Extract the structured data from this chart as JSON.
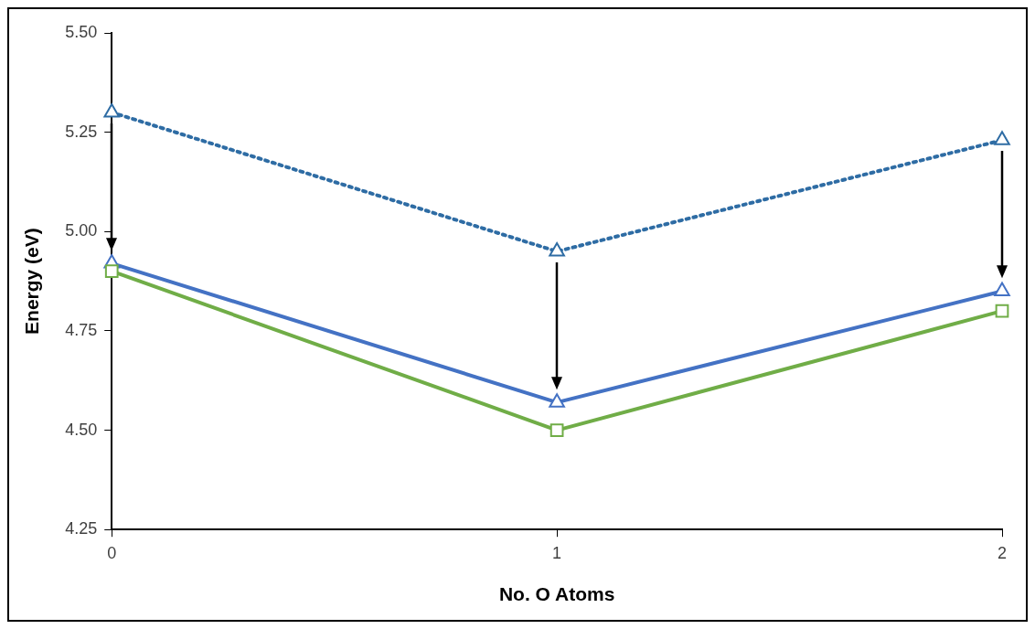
{
  "chart_data": {
    "type": "line",
    "xlabel": "No. O Atoms",
    "ylabel": "Energy (eV)",
    "x": [
      0,
      1,
      2
    ],
    "xlim": [
      0,
      2
    ],
    "xticks": [
      0,
      1,
      2
    ],
    "ylim": [
      4.25,
      5.5
    ],
    "yticks": [
      {
        "value": 4.25,
        "label": "4.25"
      },
      {
        "value": 4.5,
        "label": "4.50"
      },
      {
        "value": 4.75,
        "label": "4.75"
      },
      {
        "value": 5.0,
        "label": "5.00"
      },
      {
        "value": 5.25,
        "label": "5.25"
      },
      {
        "value": 5.5,
        "label": "5.50"
      }
    ],
    "grid": false,
    "legend": false,
    "series": [
      {
        "color": "#2e6ca4",
        "values": [
          5.3,
          4.95,
          5.23
        ],
        "marker": "triangle",
        "line_style": "dotted"
      },
      {
        "color": "#4472c4",
        "values": [
          4.92,
          4.57,
          4.85
        ],
        "marker": "triangle",
        "line_style": "solid"
      },
      {
        "color": "#70ad47",
        "values": [
          4.9,
          4.5,
          4.8
        ],
        "marker": "square",
        "line_style": "solid"
      }
    ]
  }
}
